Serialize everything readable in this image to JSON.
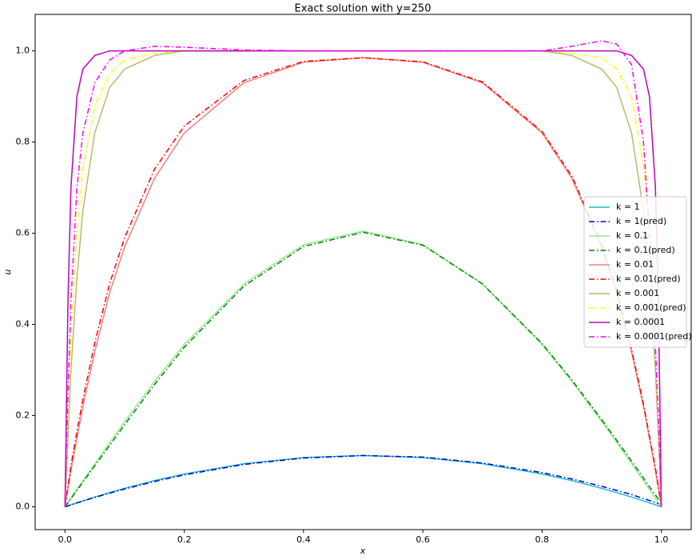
{
  "chart_data": {
    "type": "line",
    "title": "Exact solution with y=250",
    "x_label": "x",
    "y_label": "u",
    "x": [
      0,
      0.005,
      0.01,
      0.02,
      0.03,
      0.05,
      0.075,
      0.1,
      0.15,
      0.2,
      0.3,
      0.4,
      0.5,
      0.6,
      0.7,
      0.8,
      0.85,
      0.9,
      0.925,
      0.95,
      0.97,
      0.98,
      0.99,
      0.995,
      1
    ],
    "series": [
      {
        "name": "k = 1",
        "color": "#17becf",
        "dashed": false,
        "values": [
          0,
          0.0022,
          0.0045,
          0.0088,
          0.0131,
          0.0214,
          0.0312,
          0.0405,
          0.0574,
          0.072,
          0.0945,
          0.108,
          0.1125,
          0.108,
          0.0945,
          0.072,
          0.0574,
          0.0405,
          0.0312,
          0.0214,
          0.0131,
          0.0088,
          0.0045,
          0.0022,
          0
        ]
      },
      {
        "name": "k = 1(pred)",
        "color": "#0000cd",
        "dashed": true,
        "values": [
          0,
          0.002,
          0.0042,
          0.0084,
          0.0126,
          0.0205,
          0.03,
          0.039,
          0.0555,
          0.07,
          0.093,
          0.107,
          0.1125,
          0.109,
          0.096,
          0.075,
          0.061,
          0.045,
          0.036,
          0.027,
          0.018,
          0.014,
          0.0095,
          0.007,
          0.005
        ]
      },
      {
        "name": "k = 0.1",
        "color": "#90ee90",
        "dashed": false,
        "values": [
          0,
          0.0095,
          0.019,
          0.038,
          0.057,
          0.0946,
          0.141,
          0.187,
          0.275,
          0.356,
          0.489,
          0.575,
          0.605,
          0.575,
          0.489,
          0.356,
          0.275,
          0.187,
          0.141,
          0.0946,
          0.057,
          0.038,
          0.019,
          0.0095,
          0
        ]
      },
      {
        "name": "k = 0.1(pred)",
        "color": "#008000",
        "dashed": true,
        "values": [
          0,
          0.009,
          0.018,
          0.036,
          0.054,
          0.09,
          0.135,
          0.18,
          0.268,
          0.35,
          0.484,
          0.571,
          0.602,
          0.574,
          0.489,
          0.358,
          0.278,
          0.191,
          0.146,
          0.1,
          0.063,
          0.044,
          0.026,
          0.017,
          0.01
        ]
      },
      {
        "name": "k = 0.01",
        "color": "#f08080",
        "dashed": false,
        "values": [
          0,
          0.04,
          0.08,
          0.15,
          0.22,
          0.34,
          0.47,
          0.57,
          0.72,
          0.82,
          0.93,
          0.975,
          0.985,
          0.975,
          0.93,
          0.82,
          0.72,
          0.57,
          0.47,
          0.34,
          0.22,
          0.15,
          0.08,
          0.04,
          0
        ]
      },
      {
        "name": "k = 0.01(pred)",
        "color": "#ff0000",
        "dashed": true,
        "values": [
          0,
          0.045,
          0.09,
          0.165,
          0.235,
          0.36,
          0.49,
          0.59,
          0.74,
          0.835,
          0.935,
          0.977,
          0.985,
          0.976,
          0.932,
          0.823,
          0.725,
          0.575,
          0.475,
          0.345,
          0.225,
          0.155,
          0.085,
          0.045,
          0
        ]
      },
      {
        "name": "k = 0.001",
        "color": "#bdb76b",
        "dashed": false,
        "values": [
          0,
          0.15,
          0.3,
          0.5,
          0.65,
          0.82,
          0.92,
          0.96,
          0.99,
          1.0,
          1.0,
          1.0,
          1.0,
          1.0,
          1.0,
          1.0,
          0.99,
          0.96,
          0.92,
          0.82,
          0.65,
          0.5,
          0.3,
          0.15,
          0
        ]
      },
      {
        "name": "k = 0.001(pred)",
        "color": "#ffff00",
        "dashed": true,
        "values": [
          0,
          0.2,
          0.38,
          0.6,
          0.74,
          0.88,
          0.95,
          0.98,
          0.995,
          1.0,
          1.0,
          1.0,
          1.0,
          1.0,
          1.0,
          1.0,
          0.995,
          0.985,
          0.96,
          0.9,
          0.75,
          0.6,
          0.35,
          0.18,
          0
        ]
      },
      {
        "name": "k = 0.0001",
        "color": "#bf00bf",
        "dashed": false,
        "values": [
          0,
          0.45,
          0.7,
          0.9,
          0.96,
          0.99,
          1.0,
          1.0,
          1.0,
          1.0,
          1.0,
          1.0,
          1.0,
          1.0,
          1.0,
          1.0,
          1.0,
          1.0,
          1.0,
          0.99,
          0.96,
          0.9,
          0.7,
          0.45,
          0
        ]
      },
      {
        "name": "k = 0.0001(pred)",
        "color": "#ff00ff",
        "dashed": true,
        "values": [
          0,
          0.25,
          0.45,
          0.7,
          0.82,
          0.93,
          0.98,
          1.0,
          1.01,
          1.008,
          1.002,
          1.0,
          1.0,
          1.0,
          1.0,
          1.0,
          1.01,
          1.022,
          1.015,
          0.97,
          0.8,
          0.6,
          0.35,
          0.2,
          0
        ]
      }
    ],
    "xlim": [
      -0.05,
      1.05
    ],
    "ylim": [
      -0.05,
      1.08
    ],
    "xticks": [
      {
        "value": 0,
        "label": "0.0"
      },
      0.2,
      0.4,
      0.6,
      0.8,
      {
        "value": 1,
        "label": "1.0"
      }
    ],
    "yticks": [
      {
        "value": 0,
        "label": "0.0"
      },
      0.2,
      0.4,
      0.6,
      0.8,
      {
        "value": 1,
        "label": "1.0"
      }
    ],
    "grid": false,
    "legend": "center right"
  }
}
